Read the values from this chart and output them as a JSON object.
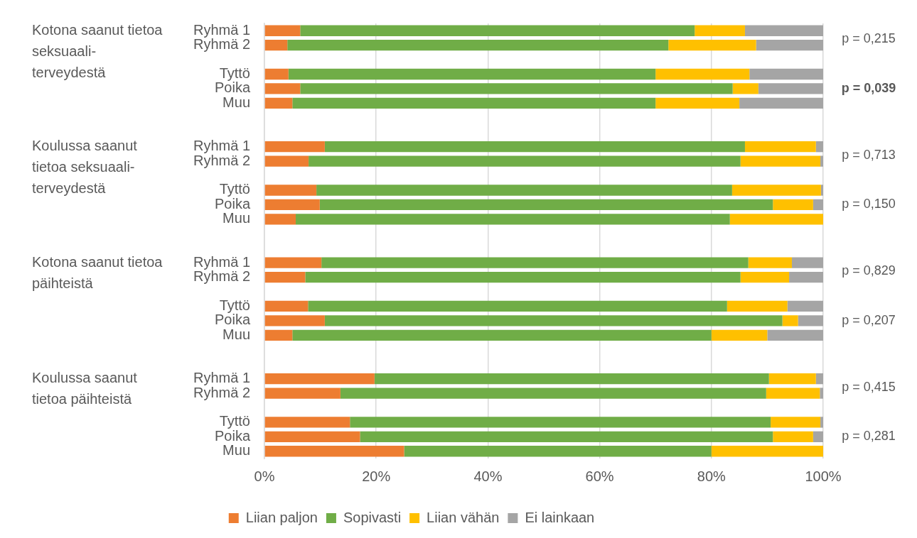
{
  "chart_data": {
    "type": "bar",
    "orientation": "horizontal",
    "stacked": true,
    "categories": [
      "Ryhmä 1",
      "Ryhmä 2",
      null,
      "Tyttö",
      "Poika",
      "Muu",
      null,
      null,
      "Ryhmä 1",
      "Ryhmä 2",
      null,
      "Tyttö",
      "Poika",
      "Muu",
      null,
      null,
      "Ryhmä 1",
      "Ryhmä 2",
      null,
      "Tyttö",
      "Poika",
      "Muu",
      null,
      null,
      "Ryhmä 1",
      "Ryhmä 2",
      null,
      "Tyttö",
      "Poika",
      "Muu"
    ],
    "series": [
      {
        "name": "Liian paljon",
        "color": "#ed7d31",
        "values": [
          6.4,
          4.1,
          null,
          4.3,
          6.4,
          5.0,
          null,
          null,
          10.8,
          7.9,
          null,
          9.3,
          9.9,
          5.6,
          null,
          null,
          10.2,
          7.3,
          null,
          7.8,
          10.8,
          5.0,
          null,
          null,
          19.7,
          13.6,
          null,
          15.3,
          17.1,
          25.0
        ]
      },
      {
        "name": "Sopivasti",
        "color": "#70ad47",
        "values": [
          70.6,
          68.2,
          null,
          65.7,
          77.4,
          65.0,
          null,
          null,
          75.2,
          77.3,
          null,
          74.4,
          81.1,
          77.7,
          null,
          null,
          76.4,
          77.9,
          null,
          75.0,
          81.9,
          75.0,
          null,
          null,
          70.6,
          76.2,
          null,
          75.3,
          73.9,
          55.0
        ]
      },
      {
        "name": "Liian vähän",
        "color": "#ffc000",
        "values": [
          9.0,
          15.7,
          null,
          16.8,
          4.6,
          15.0,
          null,
          null,
          12.7,
          14.3,
          null,
          15.9,
          7.2,
          16.7,
          null,
          null,
          7.8,
          8.7,
          null,
          10.8,
          2.8,
          10.0,
          null,
          null,
          8.4,
          9.6,
          null,
          8.9,
          7.2,
          20.0
        ]
      },
      {
        "name": "Ei lainkaan",
        "color": "#a5a5a5",
        "values": [
          14.0,
          12.0,
          null,
          13.2,
          11.6,
          15.0,
          null,
          null,
          1.3,
          0.5,
          null,
          0.4,
          1.8,
          0,
          null,
          null,
          5.6,
          6.1,
          null,
          6.4,
          4.5,
          10.0,
          null,
          null,
          1.3,
          0.6,
          null,
          0.5,
          1.8,
          0
        ]
      }
    ],
    "xlim": [
      0,
      100
    ],
    "xticks": [
      {
        "value": 0,
        "label": "0%"
      },
      {
        "value": 20,
        "label": "20%"
      },
      {
        "value": 40,
        "label": "40%"
      },
      {
        "value": 60,
        "label": "60%"
      },
      {
        "value": 80,
        "label": "80%"
      },
      {
        "value": 100,
        "label": "100%"
      }
    ],
    "grid": "x",
    "legend": "bottom",
    "annotations": [
      "Kotona saanut tietoa seksuaali-terveydestä",
      "p = 0,215",
      "p = 0,039",
      "Koulussa saanut tietoa seksuaali-terveydestä",
      "p = 0,713",
      "p = 0,150",
      "Kotona saanut tietoa päihteistä",
      "p = 0,829",
      "p = 0,207",
      "Koulussa saanut tietoa päihteistä",
      "p = 0,415",
      "p = 0,281"
    ]
  }
}
